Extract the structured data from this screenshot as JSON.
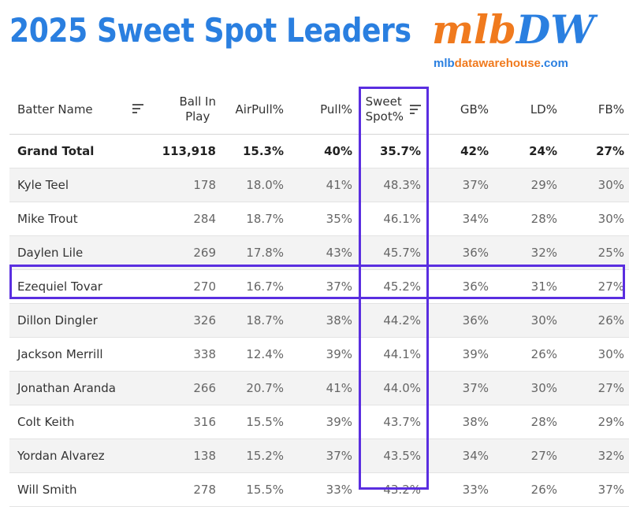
{
  "title": "2025 Sweet Spot Leaders",
  "logo": {
    "main_a": "mlb",
    "main_b": "DW",
    "sub_a": "mlb",
    "sub_b": "datawarehouse",
    "sub_c": ".com"
  },
  "colors": {
    "title_blue": "#2a7fe0",
    "logo_orange": "#f07a1e",
    "highlight": "#5a2ee0"
  },
  "headers": {
    "name": "Batter Name",
    "bip_1": "Ball In",
    "bip_2": "Play",
    "airpull": "AirPull%",
    "pull": "Pull%",
    "ss_1": "Sweet",
    "ss_2": "Spot%",
    "gb": "GB%",
    "ld": "LD%",
    "fb": "FB%"
  },
  "rows": [
    {
      "name": "Grand Total",
      "bip": "113,918",
      "airpull": "15.3%",
      "pull": "40%",
      "ss": "35.7%",
      "gb": "42%",
      "ld": "24%",
      "fb": "27%"
    },
    {
      "name": "Kyle Teel",
      "bip": "178",
      "airpull": "18.0%",
      "pull": "41%",
      "ss": "48.3%",
      "gb": "37%",
      "ld": "29%",
      "fb": "30%"
    },
    {
      "name": "Mike Trout",
      "bip": "284",
      "airpull": "18.7%",
      "pull": "35%",
      "ss": "46.1%",
      "gb": "34%",
      "ld": "28%",
      "fb": "30%"
    },
    {
      "name": "Daylen Lile",
      "bip": "269",
      "airpull": "17.8%",
      "pull": "43%",
      "ss": "45.7%",
      "gb": "36%",
      "ld": "32%",
      "fb": "25%"
    },
    {
      "name": "Ezequiel Tovar",
      "bip": "270",
      "airpull": "16.7%",
      "pull": "37%",
      "ss": "45.2%",
      "gb": "36%",
      "ld": "31%",
      "fb": "27%"
    },
    {
      "name": "Dillon Dingler",
      "bip": "326",
      "airpull": "18.7%",
      "pull": "38%",
      "ss": "44.2%",
      "gb": "36%",
      "ld": "30%",
      "fb": "26%"
    },
    {
      "name": "Jackson Merrill",
      "bip": "338",
      "airpull": "12.4%",
      "pull": "39%",
      "ss": "44.1%",
      "gb": "39%",
      "ld": "26%",
      "fb": "30%"
    },
    {
      "name": "Jonathan Aranda",
      "bip": "266",
      "airpull": "20.7%",
      "pull": "41%",
      "ss": "44.0%",
      "gb": "37%",
      "ld": "30%",
      "fb": "27%"
    },
    {
      "name": "Colt Keith",
      "bip": "316",
      "airpull": "15.5%",
      "pull": "39%",
      "ss": "43.7%",
      "gb": "38%",
      "ld": "28%",
      "fb": "29%"
    },
    {
      "name": "Yordan Alvarez",
      "bip": "138",
      "airpull": "15.2%",
      "pull": "37%",
      "ss": "43.5%",
      "gb": "34%",
      "ld": "27%",
      "fb": "32%"
    },
    {
      "name": "Will Smith",
      "bip": "278",
      "airpull": "15.5%",
      "pull": "33%",
      "ss": "43.2%",
      "gb": "33%",
      "ld": "26%",
      "fb": "37%"
    }
  ]
}
